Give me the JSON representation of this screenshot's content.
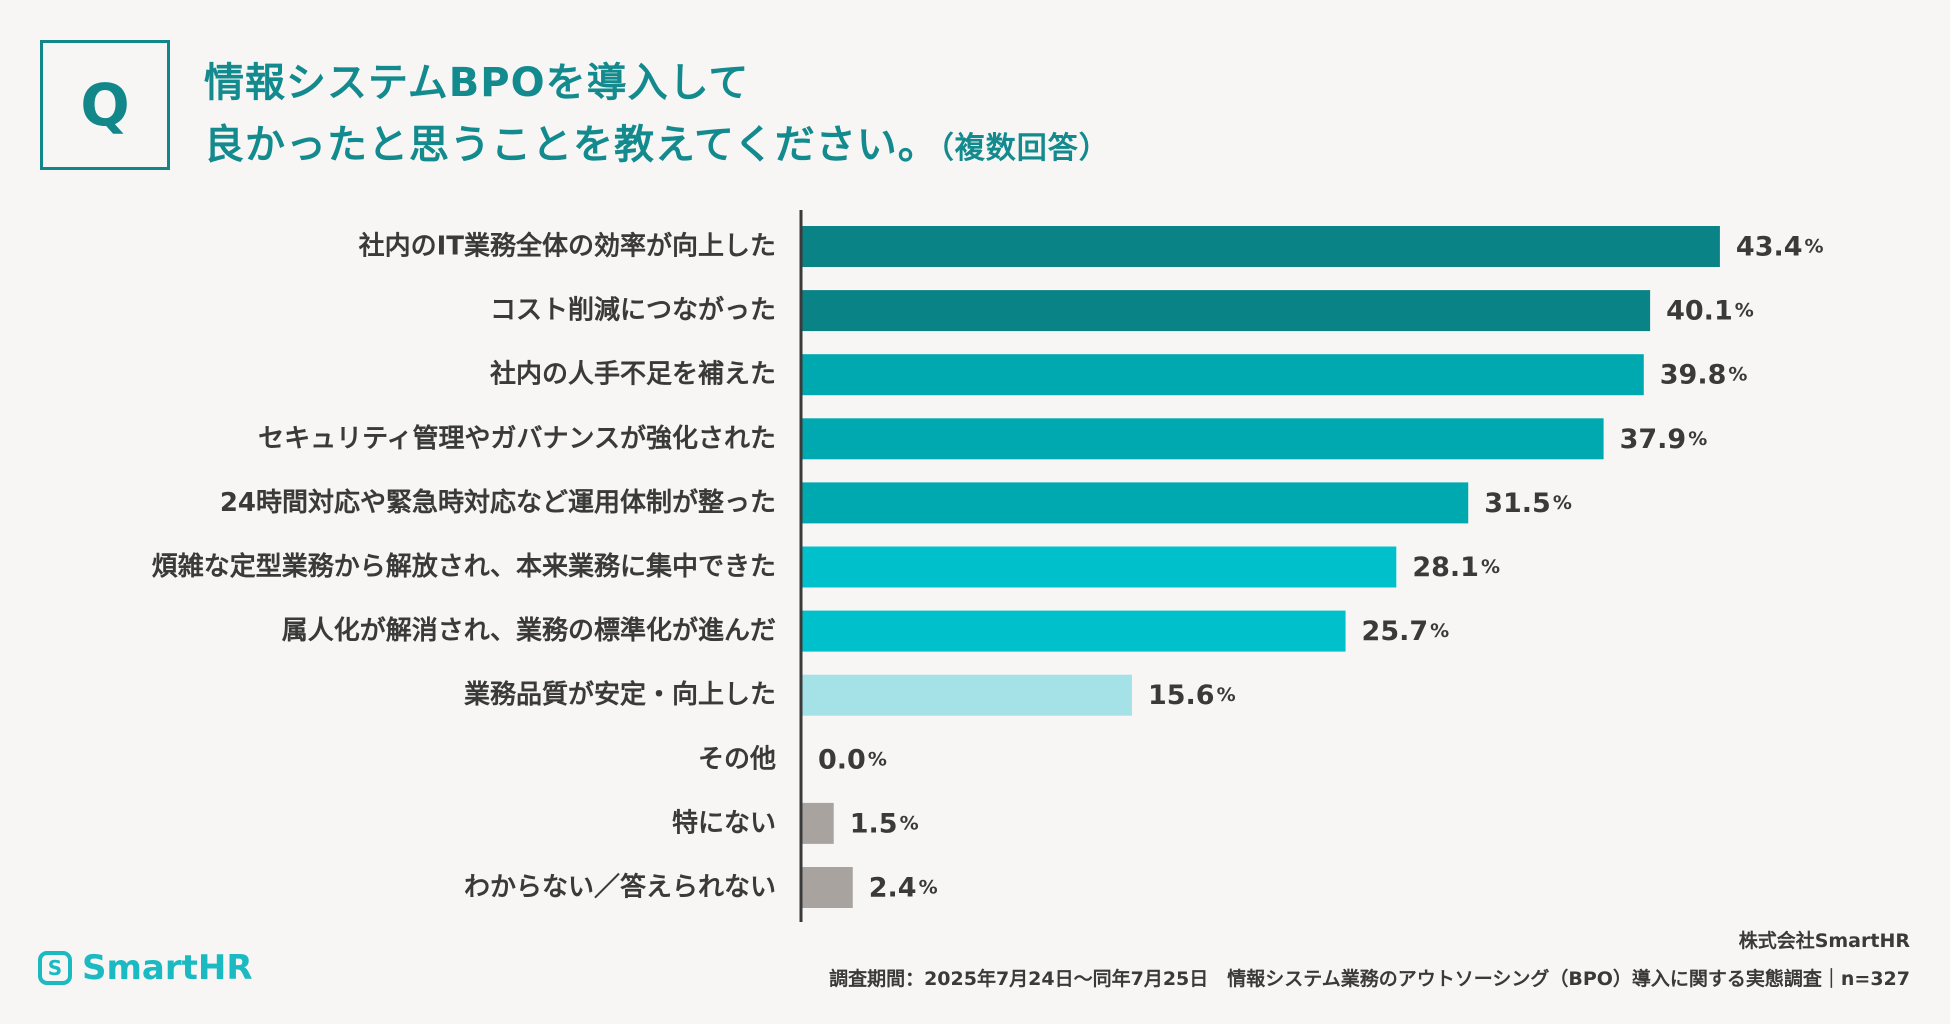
{
  "header": {
    "q_mark": "Q",
    "question_line1": "情報システムBPOを導入して",
    "question_line2": "良かったと思うことを教えてください。",
    "question_note": "（複数回答）"
  },
  "chart_data": {
    "type": "bar",
    "orientation": "horizontal",
    "categories": [
      "社内のIT業務全体の効率が向上した",
      "コスト削減につながった",
      "社内の人手不足を補えた",
      "セキュリティ管理やガバナンスが強化された",
      "24時間対応や緊急時対応など運用体制が整った",
      "煩雑な定型業務から解放され、本来業務に集中できた",
      "属人化が解消され、業務の標準化が進んだ",
      "業務品質が安定・向上した",
      "その他",
      "特にない",
      "わからない／答えられない"
    ],
    "values": [
      43.4,
      40.1,
      39.8,
      37.9,
      31.5,
      28.1,
      25.7,
      15.6,
      0.0,
      1.5,
      2.4
    ],
    "value_labels": [
      "43.4",
      "40.1",
      "39.8",
      "37.9",
      "31.5",
      "28.1",
      "25.7",
      "15.6",
      "0.0",
      "1.5",
      "2.4"
    ],
    "unit": "%",
    "bar_colors": [
      "#0a8387",
      "#0a8387",
      "#00a8b0",
      "#00a8b0",
      "#00a8b0",
      "#00c1cb",
      "#00c1cb",
      "#a4e2e8",
      "#a8a39e",
      "#a8a39e",
      "#a8a39e"
    ],
    "xlim": [
      0,
      50
    ],
    "grid": false,
    "legend": "none"
  },
  "colors": {
    "accent": "#11878a",
    "brand": "#1bb9c2",
    "background": "#f7f6f4"
  },
  "footer": {
    "logo_icon": "S",
    "logo_text": "SmartHR",
    "company": "株式会社SmartHR",
    "survey_note": "調査期間：2025年7月24日〜同年7月25日　情報システム業務のアウトソーシング（BPO）導入に関する実態調査｜n=327"
  }
}
